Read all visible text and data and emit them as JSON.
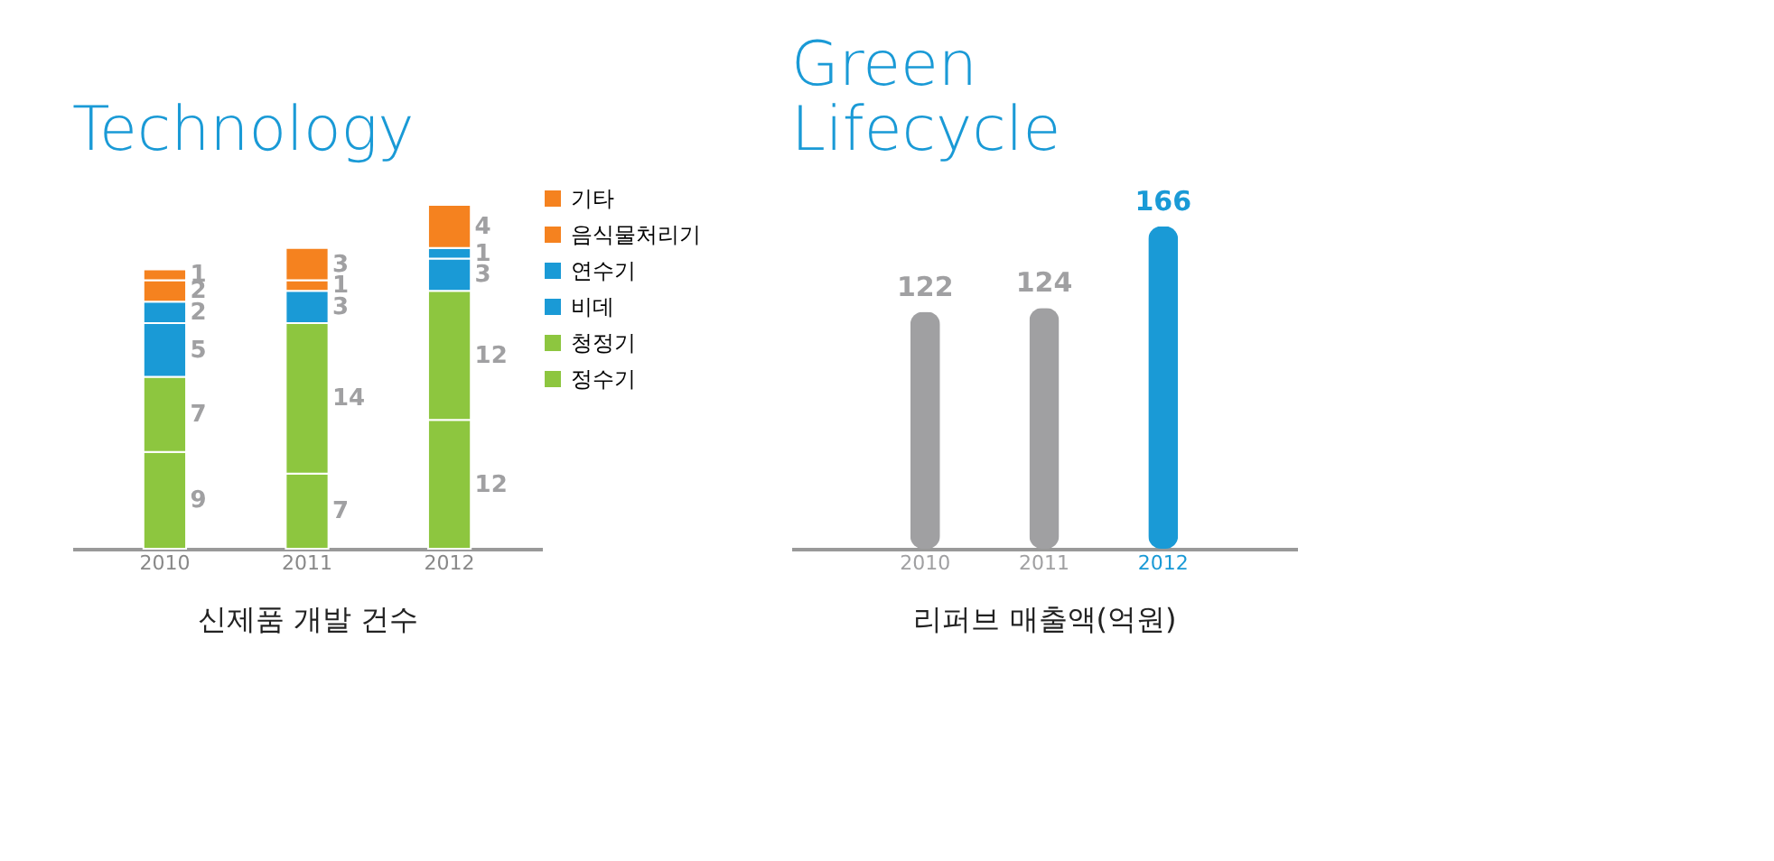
{
  "chart_data": [
    {
      "type": "bar",
      "title": "Technology",
      "xlabel": "신제품 개발 건수",
      "categories": [
        "2010",
        "2011",
        "2012"
      ],
      "stacked": true,
      "data_labels": true,
      "legend": "right",
      "series": [
        {
          "name": "정수기",
          "color": "#8dc63f",
          "values": [
            9,
            7,
            12
          ]
        },
        {
          "name": "청정기",
          "color": "#8dc63f",
          "values": [
            7,
            14,
            12
          ]
        },
        {
          "name": "비데",
          "color": "#1a9ad6",
          "values": [
            5,
            3,
            3
          ]
        },
        {
          "name": "연수기",
          "color": "#1a9ad6",
          "values": [
            2,
            null,
            1
          ]
        },
        {
          "name": "음식물처리기",
          "color": "#f5821f",
          "values": [
            2,
            1,
            null
          ]
        },
        {
          "name": "기타",
          "color": "#f5821f",
          "values": [
            1,
            3,
            4
          ]
        }
      ]
    },
    {
      "type": "bar",
      "title": "Green Lifecycle",
      "xlabel": "리퍼브 매출액(억원)",
      "categories": [
        "2010",
        "2011",
        "2012"
      ],
      "data_labels": true,
      "values": [
        122,
        124,
        166
      ],
      "colors": [
        "#a0a0a2",
        "#a0a0a2",
        "#1a9ad6"
      ]
    }
  ]
}
